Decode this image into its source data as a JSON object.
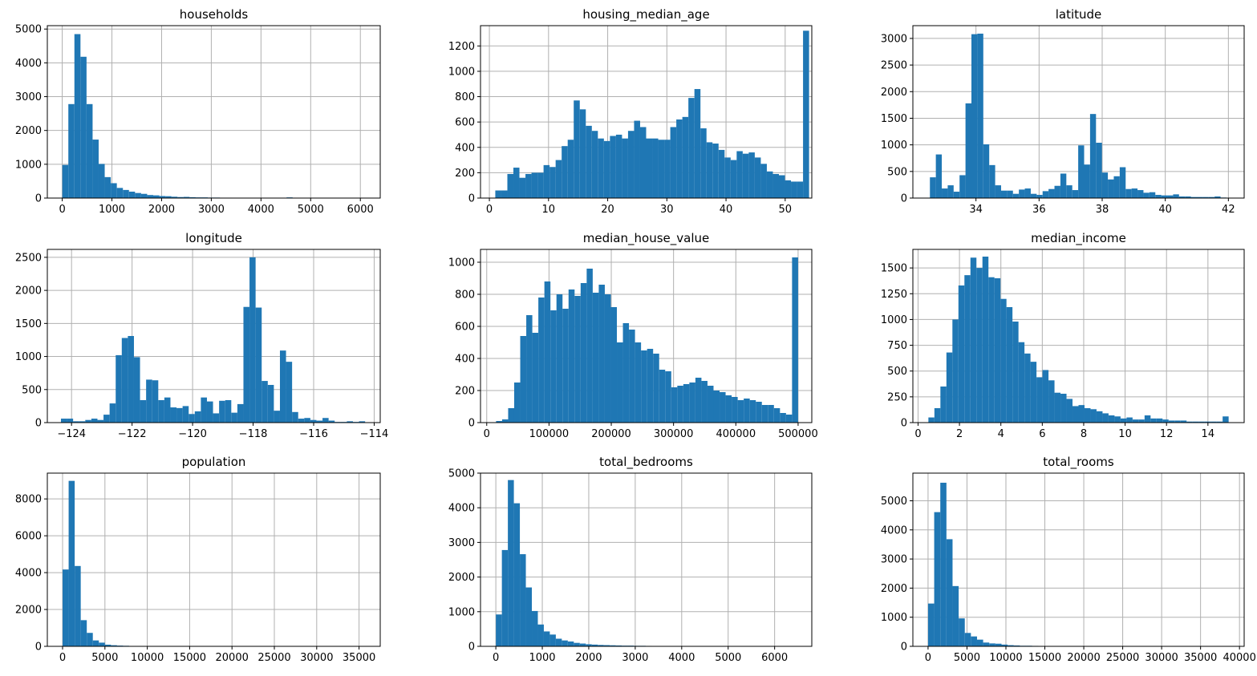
{
  "bar_color": "#1f77b4",
  "chart_data": [
    {
      "type": "bar",
      "title": "households",
      "xlim": [
        -300,
        6400
      ],
      "ylim": [
        0,
        5100
      ],
      "xticks": [
        0,
        1000,
        2000,
        3000,
        4000,
        5000,
        6000
      ],
      "yticks": [
        0,
        1000,
        2000,
        3000,
        4000,
        5000
      ],
      "xtick_labels": [
        "0",
        "1000",
        "2000",
        "3000",
        "4000",
        "5000",
        "6000"
      ],
      "ytick_labels": [
        "0",
        "1000",
        "2000",
        "3000",
        "4000",
        "5000"
      ],
      "bin_start": 1,
      "bin_width": 122,
      "values": [
        980,
        2780,
        4850,
        4180,
        2780,
        1730,
        1010,
        620,
        440,
        300,
        240,
        190,
        150,
        125,
        90,
        80,
        60,
        55,
        40,
        30,
        35,
        25,
        20,
        20,
        15,
        15,
        12,
        12,
        10,
        10,
        8,
        8,
        8,
        6,
        6,
        5,
        5,
        20,
        5,
        3,
        3,
        3,
        3,
        3,
        3,
        3,
        3,
        2,
        2,
        2
      ]
    },
    {
      "type": "bar",
      "title": "housing_median_age",
      "xlim": [
        -1.5,
        54.5
      ],
      "ylim": [
        0,
        1360
      ],
      "xticks": [
        0,
        10,
        20,
        30,
        40,
        50
      ],
      "yticks": [
        0,
        200,
        400,
        600,
        800,
        1000,
        1200
      ],
      "xtick_labels": [
        "0",
        "10",
        "20",
        "30",
        "40",
        "50"
      ],
      "ytick_labels": [
        "0",
        "200",
        "400",
        "600",
        "800",
        "1000",
        "1200"
      ],
      "bin_start": 1,
      "bin_width": 1.02,
      "values": [
        60,
        60,
        190,
        240,
        160,
        190,
        200,
        200,
        260,
        245,
        300,
        410,
        460,
        770,
        700,
        570,
        530,
        470,
        450,
        490,
        500,
        470,
        530,
        610,
        560,
        470,
        470,
        460,
        460,
        560,
        620,
        640,
        790,
        860,
        550,
        440,
        430,
        380,
        320,
        300,
        370,
        350,
        360,
        320,
        270,
        210,
        190,
        180,
        140,
        130,
        130,
        1320
      ]
    },
    {
      "type": "bar",
      "title": "latitude",
      "xlim": [
        32.0,
        42.5
      ],
      "ylim": [
        0,
        3240
      ],
      "xticks": [
        34,
        36,
        38,
        40,
        42
      ],
      "yticks": [
        0,
        500,
        1000,
        1500,
        2000,
        2500,
        3000
      ],
      "xtick_labels": [
        "34",
        "36",
        "38",
        "40",
        "42"
      ],
      "ytick_labels": [
        "0",
        "500",
        "1000",
        "1500",
        "2000",
        "2500",
        "3000"
      ],
      "bin_start": 32.54,
      "bin_width": 0.188,
      "values": [
        390,
        820,
        180,
        240,
        120,
        430,
        1780,
        3080,
        3090,
        1010,
        620,
        240,
        140,
        140,
        80,
        160,
        180,
        80,
        60,
        130,
        170,
        230,
        460,
        240,
        150,
        990,
        630,
        1580,
        1040,
        480,
        350,
        410,
        580,
        170,
        180,
        150,
        100,
        110,
        60,
        50,
        50,
        70,
        30,
        30,
        20,
        20,
        20,
        20,
        30,
        10
      ]
    },
    {
      "type": "bar",
      "title": "longitude",
      "xlim": [
        -124.8,
        -113.8
      ],
      "ylim": [
        0,
        2620
      ],
      "xticks": [
        -124,
        -122,
        -120,
        -118,
        -116,
        -114
      ],
      "yticks": [
        0,
        500,
        1000,
        1500,
        2000,
        2500
      ],
      "xtick_labels": [
        "−124",
        "−122",
        "−120",
        "−118",
        "−116",
        "−114"
      ],
      "ytick_labels": [
        "0",
        "500",
        "1000",
        "1500",
        "2000",
        "2500"
      ],
      "bin_start": -124.35,
      "bin_width": 0.201,
      "values": [
        60,
        60,
        20,
        20,
        40,
        60,
        40,
        120,
        290,
        1020,
        1280,
        1310,
        990,
        340,
        650,
        640,
        340,
        380,
        230,
        220,
        250,
        130,
        170,
        380,
        320,
        140,
        330,
        340,
        150,
        280,
        1750,
        2500,
        1740,
        630,
        570,
        180,
        1090,
        920,
        160,
        60,
        70,
        40,
        30,
        70,
        30,
        10,
        10,
        20,
        10,
        20
      ]
    },
    {
      "type": "bar",
      "title": "median_house_value",
      "xlim": [
        -10000,
        522000
      ],
      "ylim": [
        0,
        1080
      ],
      "xticks": [
        0,
        100000,
        200000,
        300000,
        400000,
        500000
      ],
      "yticks": [
        0,
        200,
        400,
        600,
        800,
        1000
      ],
      "xtick_labels": [
        "0",
        "100000",
        "200000",
        "300000",
        "400000",
        "500000"
      ],
      "ytick_labels": [
        "0",
        "200",
        "400",
        "600",
        "800",
        "1000"
      ],
      "bin_start": 14999,
      "bin_width": 9700,
      "values": [
        10,
        20,
        90,
        250,
        540,
        670,
        560,
        780,
        880,
        700,
        800,
        710,
        830,
        790,
        870,
        960,
        810,
        860,
        800,
        720,
        500,
        620,
        580,
        500,
        450,
        460,
        430,
        330,
        320,
        220,
        230,
        240,
        250,
        280,
        260,
        230,
        200,
        190,
        170,
        160,
        140,
        150,
        140,
        130,
        110,
        110,
        90,
        60,
        50,
        1030
      ]
    },
    {
      "type": "bar",
      "title": "median_income",
      "xlim": [
        -0.25,
        15.75
      ],
      "ylim": [
        0,
        1680
      ],
      "xticks": [
        0,
        2,
        4,
        6,
        8,
        10,
        12,
        14
      ],
      "yticks": [
        0,
        250,
        500,
        750,
        1000,
        1250,
        1500
      ],
      "xtick_labels": [
        "0",
        "2",
        "4",
        "6",
        "8",
        "10",
        "12",
        "14"
      ],
      "ytick_labels": [
        "0",
        "250",
        "500",
        "750",
        "1000",
        "1250",
        "1500"
      ],
      "bin_start": 0.5,
      "bin_width": 0.29,
      "values": [
        50,
        140,
        350,
        680,
        1000,
        1330,
        1430,
        1600,
        1500,
        1610,
        1410,
        1400,
        1200,
        1120,
        980,
        780,
        670,
        590,
        440,
        510,
        410,
        290,
        280,
        230,
        160,
        170,
        140,
        130,
        110,
        90,
        70,
        60,
        40,
        50,
        30,
        30,
        70,
        40,
        40,
        30,
        20,
        20,
        20,
        10,
        10,
        10,
        10,
        10,
        10,
        60
      ]
    },
    {
      "type": "bar",
      "title": "population",
      "xlim": [
        -1800,
        37500
      ],
      "ylim": [
        0,
        9400
      ],
      "xticks": [
        0,
        5000,
        10000,
        15000,
        20000,
        25000,
        30000,
        35000
      ],
      "yticks": [
        0,
        2000,
        4000,
        6000,
        8000
      ],
      "xtick_labels": [
        "0",
        "5000",
        "10000",
        "15000",
        "20000",
        "25000",
        "30000",
        "35000"
      ],
      "ytick_labels": [
        "0",
        "2000",
        "4000",
        "6000",
        "8000"
      ],
      "bin_start": 3,
      "bin_width": 713.5,
      "values": [
        4170,
        8980,
        4360,
        1420,
        730,
        320,
        200,
        90,
        60,
        40,
        30,
        20,
        15,
        10,
        10,
        8,
        6,
        5,
        5,
        4,
        4,
        3,
        3,
        3,
        2,
        2,
        2,
        2,
        2,
        2,
        2,
        2,
        2,
        2,
        2,
        2,
        2,
        2,
        2,
        2,
        2,
        2,
        2,
        2,
        2,
        2,
        2,
        2,
        2,
        2
      ]
    },
    {
      "type": "bar",
      "title": "total_bedrooms",
      "xlim": [
        -330,
        6800
      ],
      "ylim": [
        0,
        5000
      ],
      "xticks": [
        0,
        1000,
        2000,
        3000,
        4000,
        5000,
        6000
      ],
      "yticks": [
        0,
        1000,
        2000,
        3000,
        4000,
        5000
      ],
      "xtick_labels": [
        "0",
        "1000",
        "2000",
        "3000",
        "4000",
        "5000",
        "6000"
      ],
      "ytick_labels": [
        "0",
        "1000",
        "2000",
        "3000",
        "4000",
        "5000"
      ],
      "bin_start": 1,
      "bin_width": 129,
      "values": [
        920,
        2780,
        4800,
        4130,
        2660,
        1700,
        1020,
        630,
        430,
        340,
        220,
        170,
        140,
        100,
        80,
        60,
        50,
        40,
        35,
        30,
        25,
        20,
        20,
        15,
        15,
        12,
        10,
        10,
        8,
        8,
        6,
        6,
        5,
        5,
        4,
        4,
        4,
        3,
        3,
        3,
        3,
        3,
        3,
        2,
        2,
        2,
        2,
        2,
        2,
        2
      ]
    },
    {
      "type": "bar",
      "title": "total_rooms",
      "xlim": [
        -1950,
        40600
      ],
      "ylim": [
        0,
        5950
      ],
      "xticks": [
        0,
        5000,
        10000,
        15000,
        20000,
        25000,
        30000,
        35000,
        40000
      ],
      "yticks": [
        0,
        1000,
        2000,
        3000,
        4000,
        5000
      ],
      "xtick_labels": [
        "0",
        "5000",
        "10000",
        "15000",
        "20000",
        "25000",
        "30000",
        "35000",
        "40000"
      ],
      "ytick_labels": [
        "0",
        "1000",
        "2000",
        "3000",
        "4000",
        "5000"
      ],
      "bin_start": 2,
      "bin_width": 786,
      "values": [
        1470,
        4610,
        5620,
        3680,
        2070,
        960,
        460,
        340,
        230,
        130,
        100,
        90,
        60,
        40,
        30,
        20,
        20,
        15,
        10,
        10,
        8,
        8,
        6,
        5,
        5,
        4,
        4,
        3,
        3,
        3,
        3,
        2,
        2,
        2,
        2,
        2,
        2,
        2,
        2,
        2,
        2,
        2,
        2,
        2,
        2,
        2,
        2,
        2,
        2,
        2
      ]
    }
  ]
}
